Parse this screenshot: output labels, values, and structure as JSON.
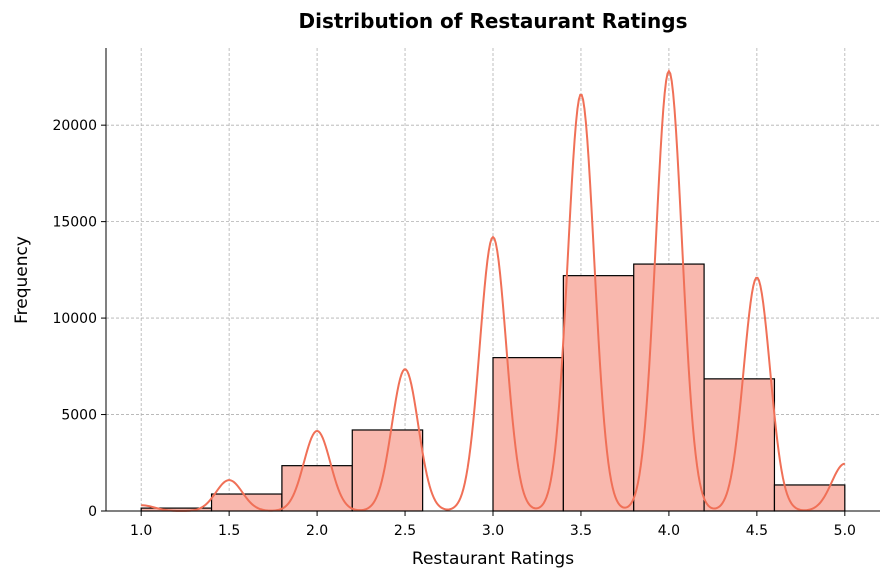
{
  "chart_data": {
    "type": "bar",
    "title": "Distribution of Restaurant Ratings",
    "xlabel": "Restaurant Ratings",
    "ylabel": "Frequency",
    "xlim": [
      0.8,
      5.2
    ],
    "ylim": [
      0,
      24000
    ],
    "xticks": [
      "1.0",
      "1.5",
      "2.0",
      "2.5",
      "3.0",
      "3.5",
      "4.0",
      "4.5",
      "5.0"
    ],
    "yticks": [
      "0",
      "5000",
      "10000",
      "15000",
      "20000"
    ],
    "grid": true,
    "bins": [
      {
        "start": 1.0,
        "end": 1.4,
        "value": 150
      },
      {
        "start": 1.4,
        "end": 1.8,
        "value": 880
      },
      {
        "start": 1.8,
        "end": 2.2,
        "value": 2350
      },
      {
        "start": 2.2,
        "end": 2.6,
        "value": 4200
      },
      {
        "start": 2.6,
        "end": 3.0,
        "value": 0
      },
      {
        "start": 3.0,
        "end": 3.4,
        "value": 7950
      },
      {
        "start": 3.4,
        "end": 3.8,
        "value": 12200
      },
      {
        "start": 3.8,
        "end": 4.2,
        "value": 12800
      },
      {
        "start": 4.2,
        "end": 4.6,
        "value": 6850
      },
      {
        "start": 4.6,
        "end": 5.0,
        "value": 1350
      }
    ],
    "kde": {
      "x": [
        1.0,
        1.5,
        2.0,
        2.5,
        3.0,
        3.5,
        4.0,
        4.5,
        5.0
      ],
      "y": [
        300,
        1600,
        4150,
        7350,
        14200,
        21600,
        22800,
        12100,
        2450
      ]
    },
    "colors": {
      "bar_fill": "#f9b8ae",
      "bar_edge": "#000000",
      "kde_line": "#f07057"
    }
  }
}
